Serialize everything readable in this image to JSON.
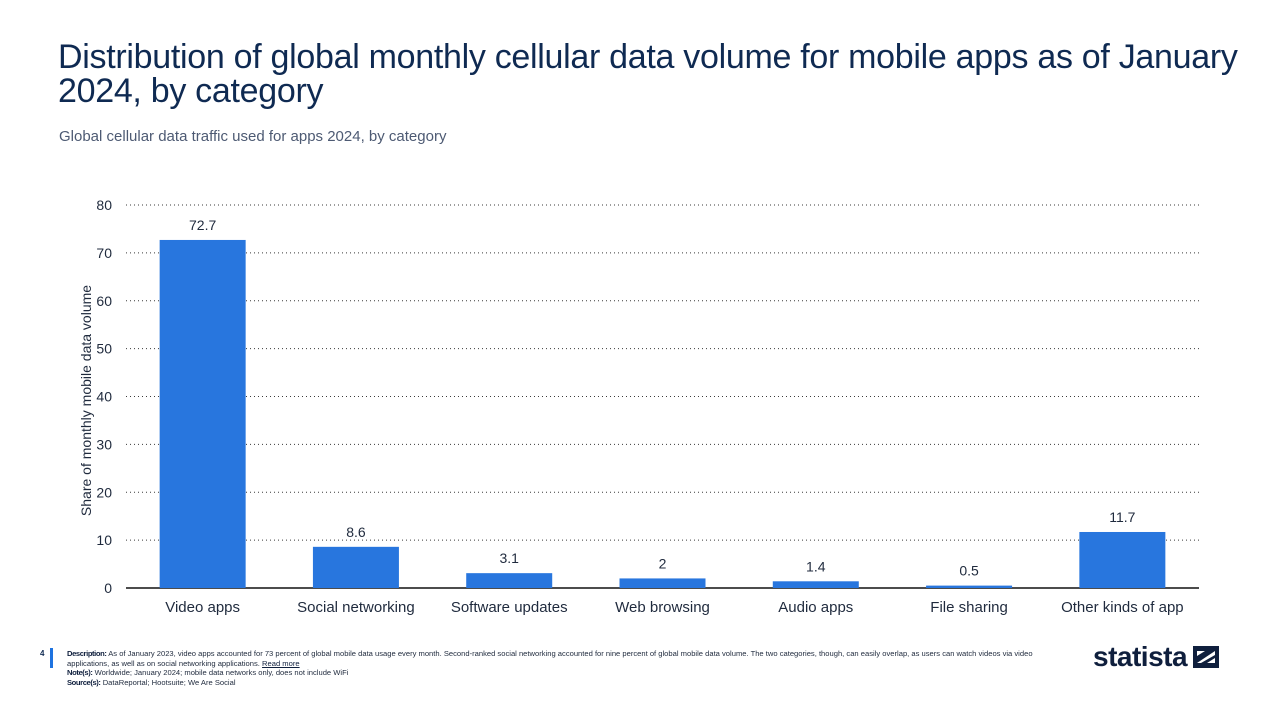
{
  "title": "Distribution of global monthly cellular data volume for mobile apps as of January 2024, by category",
  "subtitle": "Global cellular data traffic used for apps 2024, by category",
  "footer": {
    "page_number": "4",
    "description_label": "Description:",
    "description_text": "As of January 2023, video apps accounted for 73 percent of global mobile data usage every month. Second-ranked social networking accounted for nine percent of global mobile data volume. The two categories, though, can easily overlap, as users can watch videos via video applications, as well as on social networking applications.",
    "read_more": "Read more",
    "notes_label": "Note(s):",
    "notes_text": "Worldwide; January 2024; mobile data networks only, does not include WiFi",
    "sources_label": "Source(s):",
    "sources_text": "DataReportal; Hootsuite; We Are Social",
    "logo_text": "statista"
  },
  "colors": {
    "bar": "#2876de",
    "grid": "#3a3a3a",
    "text": "#1f2a3d"
  },
  "chart_data": {
    "type": "bar",
    "categories": [
      "Video apps",
      "Social networking",
      "Software updates",
      "Web browsing",
      "Audio apps",
      "File sharing",
      "Other kinds of app"
    ],
    "values": [
      72.7,
      8.6,
      3.1,
      2,
      1.4,
      0.5,
      11.7
    ],
    "value_labels": [
      "72.7",
      "8.6",
      "3.1",
      "2",
      "1.4",
      "0.5",
      "11.7"
    ],
    "ylabel": "Share of monthly mobile data volume",
    "xlabel": "",
    "ylim": [
      0,
      80
    ],
    "yticks": [
      0,
      10,
      20,
      30,
      40,
      50,
      60,
      70,
      80
    ],
    "grid": true
  }
}
